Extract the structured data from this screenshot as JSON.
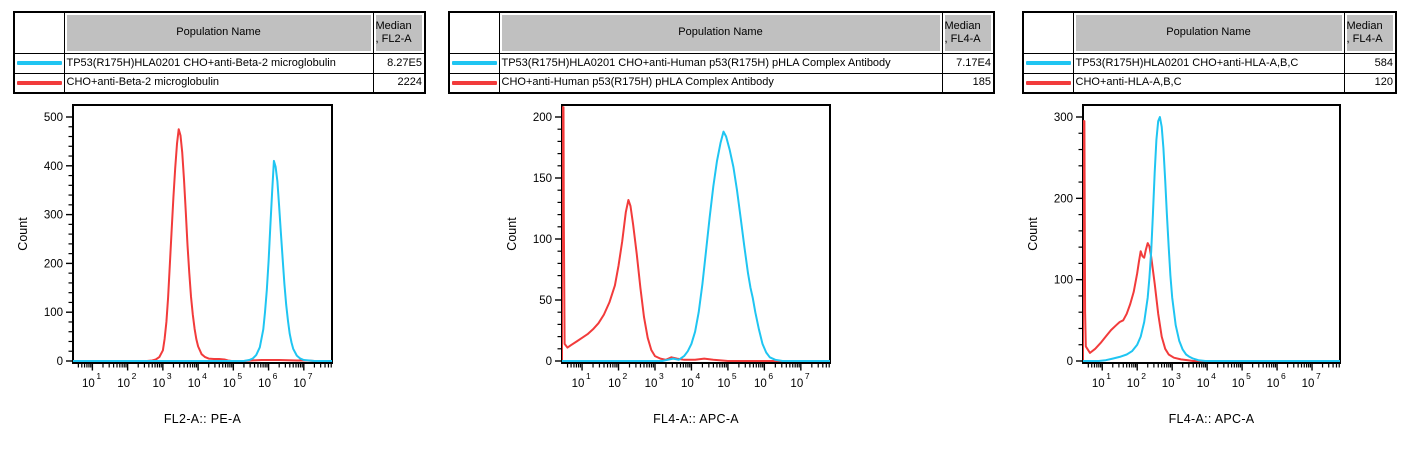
{
  "colors": {
    "cyan": "#1FC5F2",
    "red": "#F23B3B",
    "table_header_bg": "#C0C0C0",
    "axis": "#000000"
  },
  "panels": [
    {
      "table": {
        "population_header": "Population Name",
        "median_header_line1": "Median",
        "median_header_line2": ", FL2-A",
        "rows": [
          {
            "swatch": "cyan",
            "population": "TP53(R175H)HLA0201 CHO+anti-Beta-2 microglobulin",
            "median": "8.27E5"
          },
          {
            "swatch": "red",
            "population": "CHO+anti-Beta-2 microglobulin",
            "median": "2224"
          }
        ]
      }
    },
    {
      "table": {
        "population_header": "Population Name",
        "median_header_line1": "Median",
        "median_header_line2": ", FL4-A",
        "rows": [
          {
            "swatch": "cyan",
            "population": "TP53(R175H)HLA0201 CHO+anti-Human p53(R175H) pHLA Complex Antibody",
            "median": "7.17E4"
          },
          {
            "swatch": "red",
            "population": "CHO+anti-Human p53(R175H) pHLA Complex Antibody",
            "median": "185"
          }
        ]
      }
    },
    {
      "table": {
        "population_header": "Population Name",
        "median_header_line1": "Median",
        "median_header_line2": ", FL4-A",
        "rows": [
          {
            "swatch": "cyan",
            "population": "TP53(R175H)HLA0201 CHO+anti-HLA-A,B,C",
            "median": "584"
          },
          {
            "swatch": "red",
            "population": "CHO+anti-HLA-A,B,C",
            "median": "120"
          }
        ]
      }
    }
  ],
  "chart_data": [
    {
      "type": "line",
      "chart_kind": "flow-cytometry-histogram-overlay",
      "xlabel": "FL2-A:: PE-A",
      "ylabel": "Count",
      "x_scale": "log10",
      "x_decade_ticks": [
        1,
        2,
        3,
        4,
        5,
        6,
        7
      ],
      "x_range_log10": [
        0.45,
        7.8
      ],
      "ylim": [
        0,
        500
      ],
      "y_major_ticks": [
        0,
        100,
        200,
        300,
        400,
        500
      ],
      "y_minor_step": 20,
      "grid": false,
      "legend": "none",
      "series": [
        {
          "name": "CHO+anti-Beta-2 microglobulin",
          "color_key": "red",
          "median": "2224",
          "points_log10x_count": [
            [
              0.45,
              0
            ],
            [
              2.55,
              0
            ],
            [
              2.7,
              1
            ],
            [
              2.8,
              3
            ],
            [
              2.9,
              8
            ],
            [
              3.0,
              22
            ],
            [
              3.05,
              45
            ],
            [
              3.1,
              80
            ],
            [
              3.15,
              130
            ],
            [
              3.2,
              200
            ],
            [
              3.25,
              270
            ],
            [
              3.3,
              335
            ],
            [
              3.35,
              395
            ],
            [
              3.4,
              445
            ],
            [
              3.45,
              475
            ],
            [
              3.5,
              462
            ],
            [
              3.55,
              428
            ],
            [
              3.6,
              372
            ],
            [
              3.65,
              305
            ],
            [
              3.7,
              238
            ],
            [
              3.75,
              180
            ],
            [
              3.8,
              132
            ],
            [
              3.85,
              95
            ],
            [
              3.9,
              66
            ],
            [
              3.95,
              45
            ],
            [
              4.0,
              30
            ],
            [
              4.1,
              14
            ],
            [
              4.2,
              8
            ],
            [
              4.3,
              5
            ],
            [
              4.45,
              4
            ],
            [
              4.6,
              4
            ],
            [
              4.75,
              3
            ],
            [
              4.85,
              1
            ],
            [
              4.95,
              0
            ],
            [
              5.3,
              0
            ],
            [
              5.5,
              1
            ],
            [
              5.8,
              2
            ],
            [
              6.3,
              2
            ],
            [
              6.8,
              1
            ],
            [
              7.1,
              1
            ],
            [
              7.3,
              0
            ],
            [
              7.8,
              0
            ]
          ]
        },
        {
          "name": "TP53(R175H)HLA0201 CHO+anti-Beta-2 microglobulin",
          "color_key": "cyan",
          "median": "8.27E5",
          "points_log10x_count": [
            [
              0.45,
              0
            ],
            [
              5.3,
              0
            ],
            [
              5.45,
              2
            ],
            [
              5.55,
              5
            ],
            [
              5.65,
              12
            ],
            [
              5.75,
              28
            ],
            [
              5.85,
              65
            ],
            [
              5.9,
              100
            ],
            [
              5.95,
              145
            ],
            [
              6.0,
              205
            ],
            [
              6.05,
              275
            ],
            [
              6.1,
              345
            ],
            [
              6.15,
              410
            ],
            [
              6.2,
              398
            ],
            [
              6.25,
              368
            ],
            [
              6.3,
              318
            ],
            [
              6.35,
              262
            ],
            [
              6.4,
              208
            ],
            [
              6.45,
              158
            ],
            [
              6.5,
              115
            ],
            [
              6.55,
              82
            ],
            [
              6.6,
              56
            ],
            [
              6.65,
              38
            ],
            [
              6.7,
              25
            ],
            [
              6.8,
              11
            ],
            [
              6.9,
              5
            ],
            [
              7.0,
              2
            ],
            [
              7.15,
              1
            ],
            [
              7.3,
              0
            ],
            [
              7.8,
              0
            ]
          ]
        }
      ]
    },
    {
      "type": "line",
      "chart_kind": "flow-cytometry-histogram-overlay",
      "xlabel": "FL4-A:: APC-A",
      "ylabel": "Count",
      "x_scale": "log10",
      "x_decade_ticks": [
        1,
        2,
        3,
        4,
        5,
        6,
        7
      ],
      "x_range_log10": [
        0.45,
        7.8
      ],
      "ylim": [
        0,
        200
      ],
      "y_major_ticks": [
        0,
        50,
        100,
        150,
        200
      ],
      "y_minor_step": 10,
      "grid": false,
      "legend": "none",
      "series": [
        {
          "name": "CHO+anti-Human p53(R175H) pHLA Complex Antibody",
          "color_key": "red",
          "median": "185",
          "points_log10x_count": [
            [
              0.45,
              0
            ],
            [
              0.45,
              208
            ],
            [
              0.49,
              208
            ],
            [
              0.5,
              120
            ],
            [
              0.52,
              14
            ],
            [
              0.6,
              11
            ],
            [
              0.7,
              13
            ],
            [
              0.85,
              16
            ],
            [
              1.0,
              19
            ],
            [
              1.15,
              22
            ],
            [
              1.3,
              26
            ],
            [
              1.45,
              31
            ],
            [
              1.6,
              38
            ],
            [
              1.75,
              48
            ],
            [
              1.9,
              62
            ],
            [
              2.0,
              78
            ],
            [
              2.1,
              98
            ],
            [
              2.2,
              122
            ],
            [
              2.27,
              132
            ],
            [
              2.33,
              127
            ],
            [
              2.4,
              112
            ],
            [
              2.5,
              88
            ],
            [
              2.6,
              60
            ],
            [
              2.7,
              36
            ],
            [
              2.8,
              19
            ],
            [
              2.9,
              9
            ],
            [
              3.0,
              4
            ],
            [
              3.15,
              2
            ],
            [
              3.3,
              1
            ],
            [
              3.45,
              3
            ],
            [
              3.6,
              2
            ],
            [
              3.8,
              1
            ],
            [
              4.1,
              1
            ],
            [
              4.35,
              2
            ],
            [
              4.6,
              1
            ],
            [
              5.0,
              0
            ],
            [
              7.8,
              0
            ]
          ]
        },
        {
          "name": "TP53(R175H)HLA0201 CHO+anti-Human p53(R175H) pHLA Complex Antibody",
          "color_key": "cyan",
          "median": "7.17E4",
          "points_log10x_count": [
            [
              0.45,
              0
            ],
            [
              3.2,
              0
            ],
            [
              3.35,
              1
            ],
            [
              3.5,
              2
            ],
            [
              3.65,
              1
            ],
            [
              3.8,
              4
            ],
            [
              3.9,
              8
            ],
            [
              4.0,
              14
            ],
            [
              4.1,
              24
            ],
            [
              4.2,
              40
            ],
            [
              4.3,
              63
            ],
            [
              4.4,
              90
            ],
            [
              4.5,
              118
            ],
            [
              4.6,
              143
            ],
            [
              4.7,
              164
            ],
            [
              4.8,
              179
            ],
            [
              4.88,
              188
            ],
            [
              4.95,
              184
            ],
            [
              5.05,
              173
            ],
            [
              5.15,
              159
            ],
            [
              5.25,
              140
            ],
            [
              5.35,
              117
            ],
            [
              5.45,
              94
            ],
            [
              5.55,
              72
            ],
            [
              5.62,
              60
            ],
            [
              5.68,
              52
            ],
            [
              5.75,
              40
            ],
            [
              5.85,
              26
            ],
            [
              5.95,
              14
            ],
            [
              6.05,
              7
            ],
            [
              6.15,
              3
            ],
            [
              6.3,
              1
            ],
            [
              6.5,
              0
            ],
            [
              7.8,
              0
            ]
          ]
        }
      ]
    },
    {
      "type": "line",
      "chart_kind": "flow-cytometry-histogram-overlay",
      "xlabel": "FL4-A:: APC-A",
      "ylabel": "Count",
      "x_scale": "log10",
      "x_decade_ticks": [
        1,
        2,
        3,
        4,
        5,
        6,
        7
      ],
      "x_range_log10": [
        0.45,
        7.8
      ],
      "ylim": [
        0,
        300
      ],
      "y_major_ticks": [
        0,
        100,
        200,
        300
      ],
      "y_minor_step": 20,
      "grid": false,
      "legend": "none",
      "series": [
        {
          "name": "CHO+anti-HLA-A,B,C",
          "color_key": "red",
          "median": "120",
          "points_log10x_count": [
            [
              0.45,
              0
            ],
            [
              0.45,
              295
            ],
            [
              0.49,
              295
            ],
            [
              0.51,
              60
            ],
            [
              0.53,
              18
            ],
            [
              0.65,
              10
            ],
            [
              0.8,
              15
            ],
            [
              0.95,
              22
            ],
            [
              1.1,
              30
            ],
            [
              1.25,
              38
            ],
            [
              1.4,
              44
            ],
            [
              1.5,
              48
            ],
            [
              1.6,
              50
            ],
            [
              1.7,
              58
            ],
            [
              1.8,
              70
            ],
            [
              1.9,
              85
            ],
            [
              2.0,
              108
            ],
            [
              2.05,
              122
            ],
            [
              2.1,
              135
            ],
            [
              2.15,
              129
            ],
            [
              2.2,
              127
            ],
            [
              2.25,
              137
            ],
            [
              2.3,
              145
            ],
            [
              2.35,
              141
            ],
            [
              2.4,
              128
            ],
            [
              2.45,
              112
            ],
            [
              2.5,
              95
            ],
            [
              2.6,
              58
            ],
            [
              2.7,
              30
            ],
            [
              2.8,
              15
            ],
            [
              2.9,
              8
            ],
            [
              3.05,
              4
            ],
            [
              3.25,
              2
            ],
            [
              3.45,
              1
            ],
            [
              3.6,
              0
            ],
            [
              7.8,
              0
            ]
          ]
        },
        {
          "name": "TP53(R175H)HLA0201 CHO+anti-HLA-A,B,C",
          "color_key": "cyan",
          "median": "584",
          "points_log10x_count": [
            [
              0.45,
              0
            ],
            [
              0.9,
              0
            ],
            [
              1.1,
              1
            ],
            [
              1.3,
              3
            ],
            [
              1.5,
              5
            ],
            [
              1.7,
              8
            ],
            [
              1.85,
              12
            ],
            [
              2.0,
              20
            ],
            [
              2.1,
              30
            ],
            [
              2.2,
              48
            ],
            [
              2.3,
              78
            ],
            [
              2.35,
              102
            ],
            [
              2.4,
              135
            ],
            [
              2.45,
              180
            ],
            [
              2.5,
              232
            ],
            [
              2.55,
              272
            ],
            [
              2.6,
              295
            ],
            [
              2.65,
              300
            ],
            [
              2.7,
              288
            ],
            [
              2.75,
              262
            ],
            [
              2.8,
              222
            ],
            [
              2.85,
              180
            ],
            [
              2.9,
              140
            ],
            [
              2.95,
              105
            ],
            [
              3.0,
              78
            ],
            [
              3.1,
              44
            ],
            [
              3.2,
              25
            ],
            [
              3.3,
              14
            ],
            [
              3.4,
              8
            ],
            [
              3.5,
              5
            ],
            [
              3.6,
              3
            ],
            [
              3.75,
              1
            ],
            [
              3.95,
              0
            ],
            [
              7.8,
              0
            ]
          ]
        }
      ]
    }
  ]
}
